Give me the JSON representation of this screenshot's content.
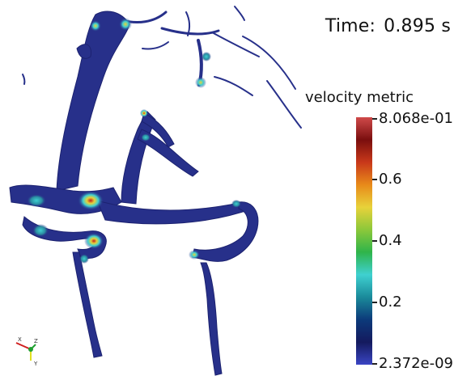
{
  "scene": {
    "description_icon": "vessel-surface-render",
    "colors": {
      "vessel_base": "#27308a",
      "vessel_dark": "#1c2270",
      "hotspot_cyan": "#3fd0d0",
      "hotspot_yellow": "#e8d23a",
      "hotspot_orange": "#e06a1a",
      "hotspot_red": "#c0201a"
    }
  },
  "annotation": {
    "time_prefix": "Time:",
    "time_value": "0.895 s"
  },
  "legend": {
    "title": "velocity metric",
    "max_label": "8.068e-01",
    "min_label": "2.372e-09",
    "ticks": [
      {
        "label": "0.6",
        "value": 0.6
      },
      {
        "label": "0.4",
        "value": 0.4
      },
      {
        "label": "0.2",
        "value": 0.2
      }
    ],
    "range": [
      2.372e-09,
      0.8068
    ],
    "colormap_stops": [
      "#3a45c4",
      "#141a5e",
      "#0c3a7a",
      "#1a8a9a",
      "#3fd0d0",
      "#2fb44a",
      "#8cc83a",
      "#e8d23a",
      "#e88a1a",
      "#c8381a",
      "#7a0e0e",
      "#d04a4a"
    ]
  },
  "axes_triad": {
    "x_label": "X",
    "y_label": "Y",
    "z_label": "Z"
  }
}
